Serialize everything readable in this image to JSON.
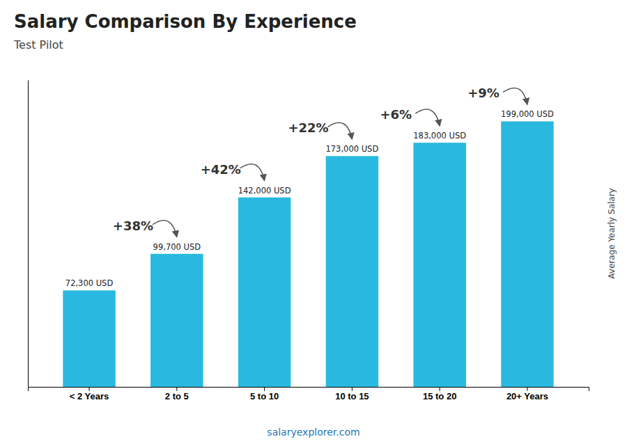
{
  "chart_data": {
    "type": "bar",
    "title": "Salary Comparison By Experience",
    "subtitle": "Test Pilot",
    "ylabel": "Average Yearly Salary",
    "footer": "salaryexplorer.com",
    "categories": [
      "< 2 Years",
      "2 to 5",
      "5 to 10",
      "10 to 15",
      "15 to 20",
      "20+ Years"
    ],
    "values": [
      72300,
      99700,
      142000,
      173000,
      183000,
      199000
    ],
    "value_labels": [
      "72,300 USD",
      "99,700 USD",
      "142,000 USD",
      "173,000 USD",
      "183,000 USD",
      "199,000 USD"
    ],
    "data_labels": true,
    "annotations": [
      "+38%",
      "+42%",
      "+22%",
      "+6%",
      "+9%"
    ],
    "color": "#29B9E0",
    "ylim": [
      0,
      230000
    ],
    "tick_labels": "x",
    "grid": false
  }
}
